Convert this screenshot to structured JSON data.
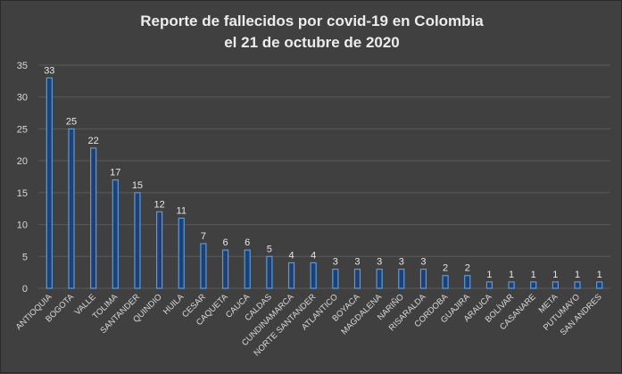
{
  "chart_data": {
    "type": "bar",
    "title_line1": "Reporte de fallecidos por covid-19 en Colombia",
    "title_line2": "el 21 de octubre de 2020",
    "xlabel": "",
    "ylabel": "",
    "ylim": [
      0,
      35
    ],
    "yticks": [
      0,
      5,
      10,
      15,
      20,
      25,
      30,
      35
    ],
    "grid": true,
    "categories": [
      "ANTIOQUIA",
      "BOGOTA",
      "VALLE",
      "TOLIMA",
      "SANTANDER",
      "QUINDIO",
      "HUILA",
      "CESAR",
      "CAQUETA",
      "CAUCA",
      "CALDAS",
      "CUNDINAMARCA",
      "NORTE SANTANDER",
      "ATLANTICO",
      "BOYACA",
      "MAGDALENA",
      "NARIÑO",
      "RISARALDA",
      "CORDOBA",
      "GUAJIRA",
      "ARAUCA",
      "BOLÍVAR",
      "CASANARE",
      "META",
      "PUTUMAYO",
      "SAN ANDRES"
    ],
    "values": [
      33,
      25,
      22,
      17,
      15,
      12,
      11,
      7,
      6,
      6,
      5,
      4,
      4,
      3,
      3,
      3,
      3,
      3,
      2,
      2,
      1,
      1,
      1,
      1,
      1,
      1
    ],
    "colors": {
      "bar_fill": "#1f3f75",
      "bar_stroke": "#5b9bd5",
      "grid": "#5a5a5a",
      "text": "#d9d9d9"
    }
  }
}
